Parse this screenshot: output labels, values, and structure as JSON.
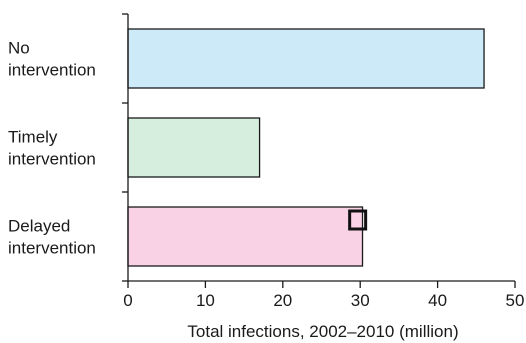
{
  "chart_data": {
    "type": "bar",
    "orientation": "horizontal",
    "categories": [
      [
        "No",
        "intervention"
      ],
      [
        "Timely",
        "intervention"
      ],
      [
        "Delayed",
        "intervention"
      ]
    ],
    "values": [
      46,
      17,
      30.3
    ],
    "colors": [
      "#cdeaf8",
      "#d6eedd",
      "#f9d2e6"
    ],
    "xlabel": "Total infections, 2002–2010 (million)",
    "xlim": [
      0,
      50
    ],
    "xticks": [
      0,
      10,
      20,
      30,
      40,
      50
    ],
    "grid": false,
    "highlight_marker": {
      "category_index": 2,
      "x_value": 29.8
    }
  }
}
